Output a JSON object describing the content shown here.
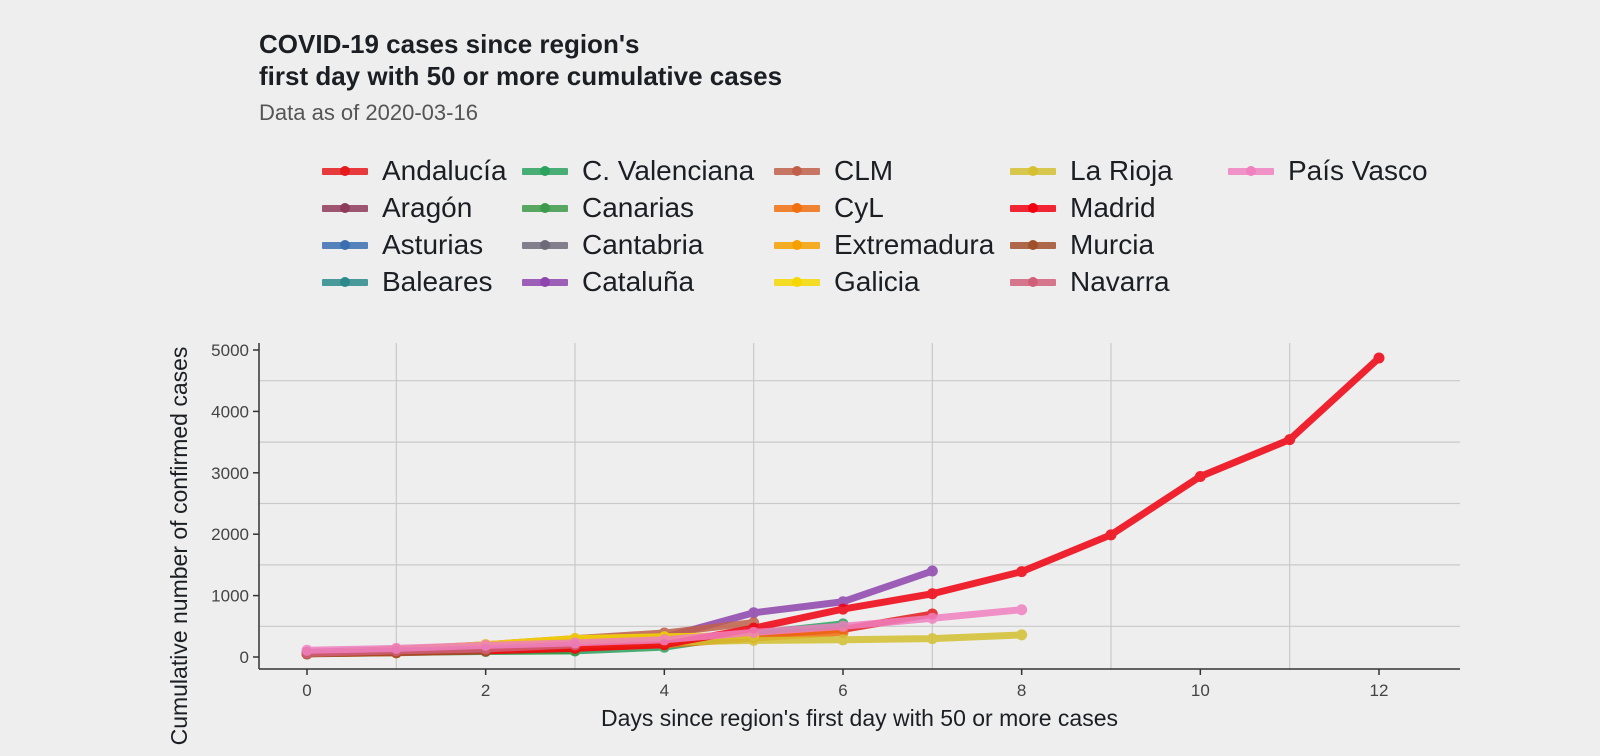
{
  "chart_data": {
    "type": "line",
    "title_lines": [
      "COVID-19 cases since region's",
      "first day with 50 or more cumulative cases"
    ],
    "subtitle": "Data as of 2020-03-16",
    "xlabel": "Days since region's first day with 50 or more cases",
    "ylabel": "Cumulative number of confirmed cases",
    "xlim": [
      -0.5,
      12.5
    ],
    "ylim": [
      -180,
      5050
    ],
    "x_ticks": [
      0,
      2,
      4,
      6,
      8,
      10,
      12
    ],
    "x_tick_labels": [
      "0",
      "2",
      "4",
      "6",
      "8",
      "10",
      "12"
    ],
    "y_ticks": [
      0,
      1000,
      2000,
      3000,
      4000,
      5000
    ],
    "y_tick_labels": [
      "0",
      "1000",
      "2000",
      "3000",
      "4000",
      "5000"
    ],
    "grid": true,
    "legend_position": "top",
    "series": [
      {
        "name": "Andalucía",
        "color": "#e41a1c",
        "x": [
          0,
          1,
          2,
          3,
          4,
          5,
          6,
          7
        ],
        "values": [
          54,
          90,
          115,
          150,
          220,
          350,
          450,
          700
        ]
      },
      {
        "name": "Aragón",
        "color": "#8e3a59",
        "x": [
          0,
          1,
          2
        ],
        "values": [
          60,
          90,
          120
        ]
      },
      {
        "name": "Asturias",
        "color": "#3a6fb0",
        "x": [
          0,
          1,
          2
        ],
        "values": [
          55,
          85,
          110
        ]
      },
      {
        "name": "Baleares",
        "color": "#2a8a8a",
        "x": [
          0,
          1
        ],
        "values": [
          55,
          75
        ]
      },
      {
        "name": "C. Valenciana",
        "color": "#2ca25f",
        "x": [
          0,
          1,
          2,
          3,
          4,
          5,
          6
        ],
        "values": [
          55,
          80,
          100,
          100,
          160,
          380,
          540
        ]
      },
      {
        "name": "Canarias",
        "color": "#3c9a4a",
        "x": [
          0,
          1,
          2,
          3
        ],
        "values": [
          55,
          75,
          90,
          100
        ]
      },
      {
        "name": "Cantabria",
        "color": "#6f6a7a",
        "x": [
          0,
          1
        ],
        "values": [
          55,
          70
        ]
      },
      {
        "name": "Cataluña",
        "color": "#8e44ad",
        "x": [
          0,
          1,
          2,
          3,
          4,
          5,
          6,
          7
        ],
        "values": [
          75,
          120,
          160,
          250,
          320,
          720,
          900,
          1400
        ]
      },
      {
        "name": "CLM",
        "color": "#c0604a",
        "x": [
          0,
          1,
          2,
          3,
          4,
          5
        ],
        "values": [
          60,
          120,
          200,
          300,
          390,
          560
        ]
      },
      {
        "name": "CyL",
        "color": "#f07010",
        "x": [
          0,
          1,
          2,
          3,
          4,
          5,
          6
        ],
        "values": [
          55,
          80,
          110,
          150,
          200,
          310,
          400
        ]
      },
      {
        "name": "Extremadura",
        "color": "#f5a000",
        "x": [
          0,
          1
        ],
        "values": [
          55,
          70
        ]
      },
      {
        "name": "Galicia",
        "color": "#f5d800",
        "x": [
          0,
          1,
          2,
          3,
          4,
          5
        ],
        "values": [
          60,
          110,
          200,
          300,
          330,
          350
        ]
      },
      {
        "name": "La Rioja",
        "color": "#d4c030",
        "x": [
          0,
          1,
          2,
          3,
          4,
          5,
          6,
          7,
          8
        ],
        "values": [
          55,
          100,
          150,
          190,
          240,
          270,
          280,
          300,
          360
        ]
      },
      {
        "name": "Madrid",
        "color": "#f00010",
        "x": [
          0,
          1,
          2,
          3,
          4,
          5,
          6,
          7,
          8,
          9,
          10,
          11,
          12
        ],
        "values": [
          60,
          80,
          100,
          140,
          200,
          470,
          780,
          1030,
          1390,
          1990,
          2940,
          3540,
          4870
        ]
      },
      {
        "name": "Murcia",
        "color": "#a0502a",
        "x": [
          0,
          1,
          2
        ],
        "values": [
          50,
          70,
          100
        ]
      },
      {
        "name": "Navarra",
        "color": "#d0607a",
        "x": [
          0,
          1,
          2,
          3
        ],
        "values": [
          60,
          100,
          130,
          200
        ]
      },
      {
        "name": "País Vasco",
        "color": "#f080c0",
        "x": [
          0,
          1,
          2,
          3,
          4,
          5,
          6,
          7,
          8
        ],
        "values": [
          110,
          140,
          190,
          230,
          280,
          400,
          500,
          630,
          770
        ]
      }
    ]
  }
}
